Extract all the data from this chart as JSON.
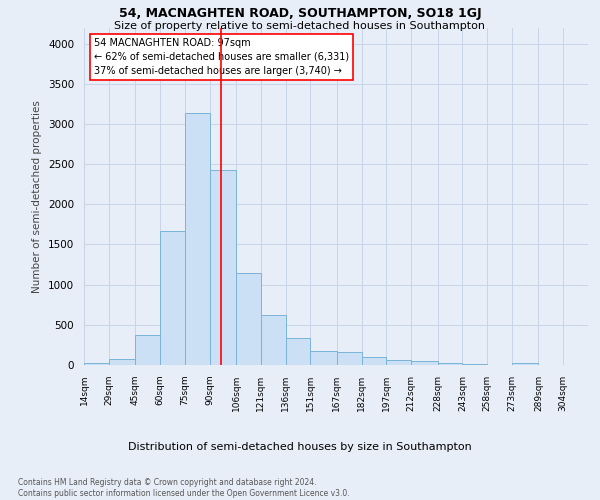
{
  "title1": "54, MACNAGHTEN ROAD, SOUTHAMPTON, SO18 1GJ",
  "title2": "Size of property relative to semi-detached houses in Southampton",
  "xlabel": "Distribution of semi-detached houses by size in Southampton",
  "ylabel": "Number of semi-detached properties",
  "footnote": "Contains HM Land Registry data © Crown copyright and database right 2024.\nContains public sector information licensed under the Open Government Licence v3.0.",
  "bins": [
    14,
    29,
    45,
    60,
    75,
    90,
    106,
    121,
    136,
    151,
    167,
    182,
    197,
    212,
    228,
    243,
    258,
    273,
    289,
    304,
    319
  ],
  "bar_heights": [
    30,
    80,
    370,
    1670,
    3130,
    2430,
    1140,
    620,
    340,
    175,
    160,
    105,
    65,
    50,
    30,
    15,
    5,
    30,
    5,
    5
  ],
  "bar_color": "#cce0f5",
  "bar_edge_color": "#7ab4d8",
  "red_line_x": 97,
  "annotation_text": "54 MACNAGHTEN ROAD: 97sqm\n← 62% of semi-detached houses are smaller (6,331)\n37% of semi-detached houses are larger (3,740) →",
  "annotation_box_color": "white",
  "annotation_box_edge": "red",
  "grid_color": "#c8d4e8",
  "background_color": "#e8eef8",
  "ylim": [
    0,
    4200
  ],
  "yticks": [
    0,
    500,
    1000,
    1500,
    2000,
    2500,
    3000,
    3500,
    4000
  ],
  "title1_fontsize": 9,
  "title2_fontsize": 8,
  "xlabel_fontsize": 8,
  "ylabel_fontsize": 7.5,
  "footnote_fontsize": 5.5
}
